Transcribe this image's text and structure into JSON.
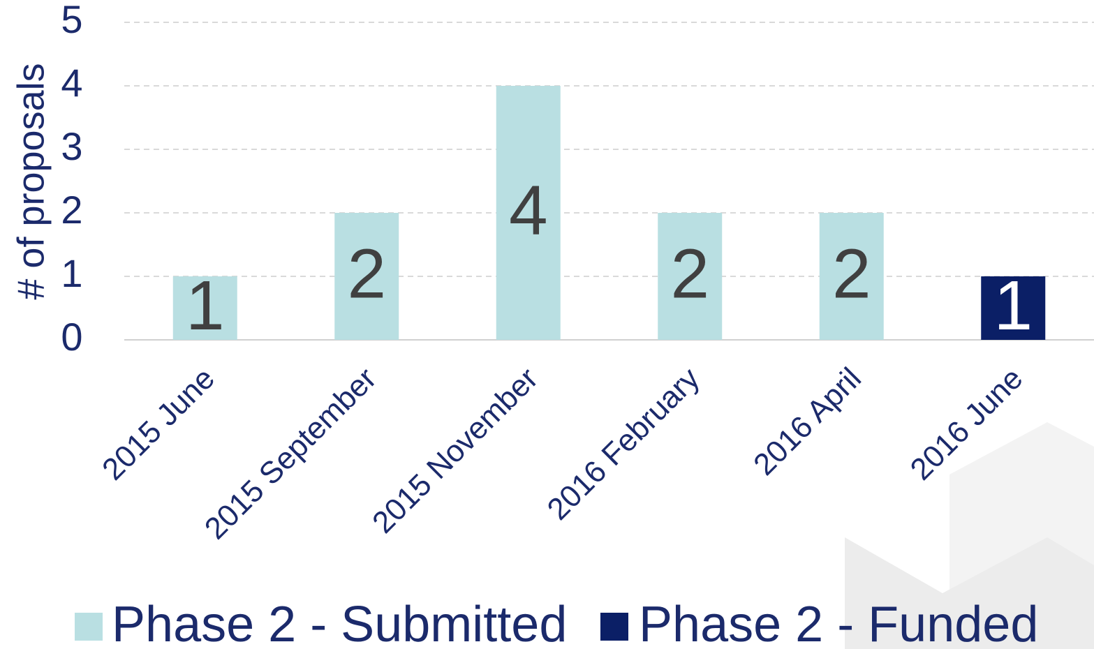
{
  "chart_data": {
    "type": "stacked_bar",
    "y_label": "# of proposals",
    "categories": [
      "2015 June",
      "2015 September",
      "2015 November",
      "2016 February",
      "2016 April",
      "2016 June"
    ],
    "series": [
      {
        "name": "Phase 2 - Submitted",
        "color": "#b9dfe2",
        "label_color": "#404040",
        "values": [
          1,
          2,
          4,
          2,
          2,
          null
        ]
      },
      {
        "name": "Phase 2 - Funded",
        "color": "#0b1f66",
        "label_color": "#ffffff",
        "values": [
          null,
          null,
          null,
          null,
          null,
          1
        ]
      }
    ],
    "ylim": [
      0,
      5
    ],
    "yticks": [
      0,
      1,
      2,
      3,
      4,
      5
    ],
    "grid": true
  }
}
